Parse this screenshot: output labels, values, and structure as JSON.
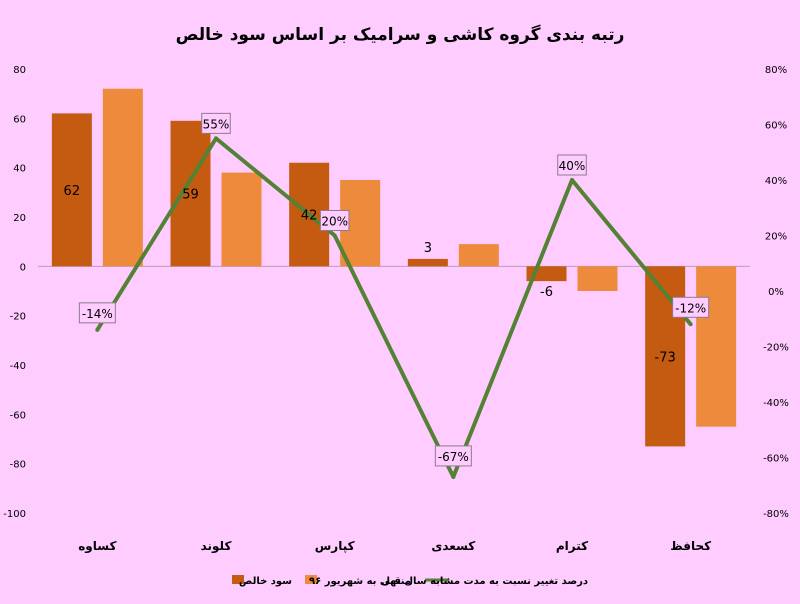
{
  "chart_data": {
    "type": "bar",
    "title": "رتبه بندی گروه کاشی و سرامیک بر اساس سود خالص",
    "categories": [
      "کساوه",
      "کلوند",
      "کپارس",
      "کسعدی",
      "کترام",
      "کحافظ"
    ],
    "series": [
      {
        "name": "سود خالص",
        "type": "bar",
        "axis": "left",
        "color": "#c55a11",
        "values": [
          62,
          59,
          42,
          3,
          -6,
          -73
        ],
        "labels": [
          "62",
          "59",
          "42",
          "3",
          "-6",
          "-73"
        ]
      },
      {
        "name": "منتهی به شهریور ۹۶",
        "type": "bar",
        "axis": "left",
        "color": "#ed8a3c",
        "values": [
          72,
          38,
          35,
          9,
          -10,
          -65
        ]
      },
      {
        "name": "درصد تغییر نسبت به مدت مشابه سال قبل",
        "type": "line",
        "axis": "right",
        "color": "#548235",
        "values": [
          -14,
          55,
          20,
          -67,
          40,
          -12
        ],
        "labels": [
          "-14%",
          "55%",
          "20%",
          "-67%",
          "40%",
          "-12%"
        ]
      }
    ],
    "y_left": {
      "min": -100,
      "max": 80,
      "step": 20,
      "ticks": [
        "80",
        "60",
        "40",
        "20",
        "0",
        "-20",
        "-40",
        "-60",
        "-80",
        "-100"
      ]
    },
    "y_right": {
      "min": -80,
      "max": 80,
      "step": 20,
      "ticks": [
        "80%",
        "60%",
        "40%",
        "20%",
        "0%",
        "-20%",
        "-40%",
        "-60%",
        "-80%"
      ]
    },
    "grid": false,
    "legend": "bottom"
  }
}
